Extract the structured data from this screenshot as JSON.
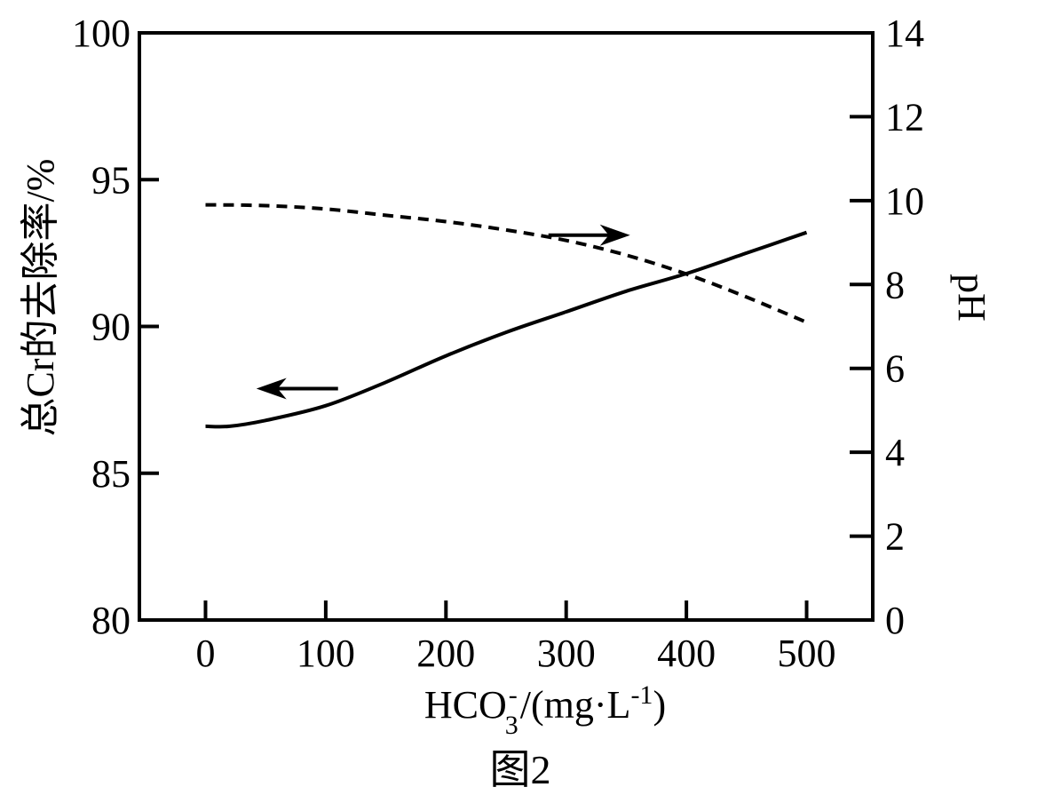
{
  "chart_data": {
    "type": "line",
    "caption": "图2",
    "xlabel": {
      "base": "HCO",
      "sub": "3",
      "sup": "-",
      "rest": "/(mg·L",
      "rest_sup": "-1",
      "close": ")"
    },
    "ylabel_left": "总Cr的去除率/%",
    "ylabel_right": "pH",
    "xlim": [
      -55,
      555
    ],
    "ylim_left": [
      80,
      100
    ],
    "ylim_right": [
      0,
      14
    ],
    "x_ticks": [
      0,
      100,
      200,
      300,
      400,
      500
    ],
    "y_left_ticks": [
      80,
      85,
      90,
      95,
      100
    ],
    "y_right_ticks": [
      0,
      2,
      4,
      6,
      8,
      10,
      12,
      14
    ],
    "grid": false,
    "series": [
      {
        "axis": "left",
        "style": "solid",
        "arrow": "left",
        "x": [
          0,
          20,
          50,
          100,
          150,
          200,
          250,
          300,
          350,
          400,
          450,
          500
        ],
        "y": [
          86.6,
          86.6,
          86.8,
          87.3,
          88.1,
          89.0,
          89.8,
          90.5,
          91.2,
          91.8,
          92.5,
          93.2
        ]
      },
      {
        "axis": "right",
        "style": "dashed",
        "arrow": "right",
        "x": [
          0,
          50,
          100,
          150,
          200,
          250,
          300,
          350,
          400,
          450,
          500
        ],
        "y": [
          9.9,
          9.88,
          9.8,
          9.65,
          9.5,
          9.3,
          9.05,
          8.7,
          8.25,
          7.7,
          7.1
        ]
      }
    ]
  }
}
